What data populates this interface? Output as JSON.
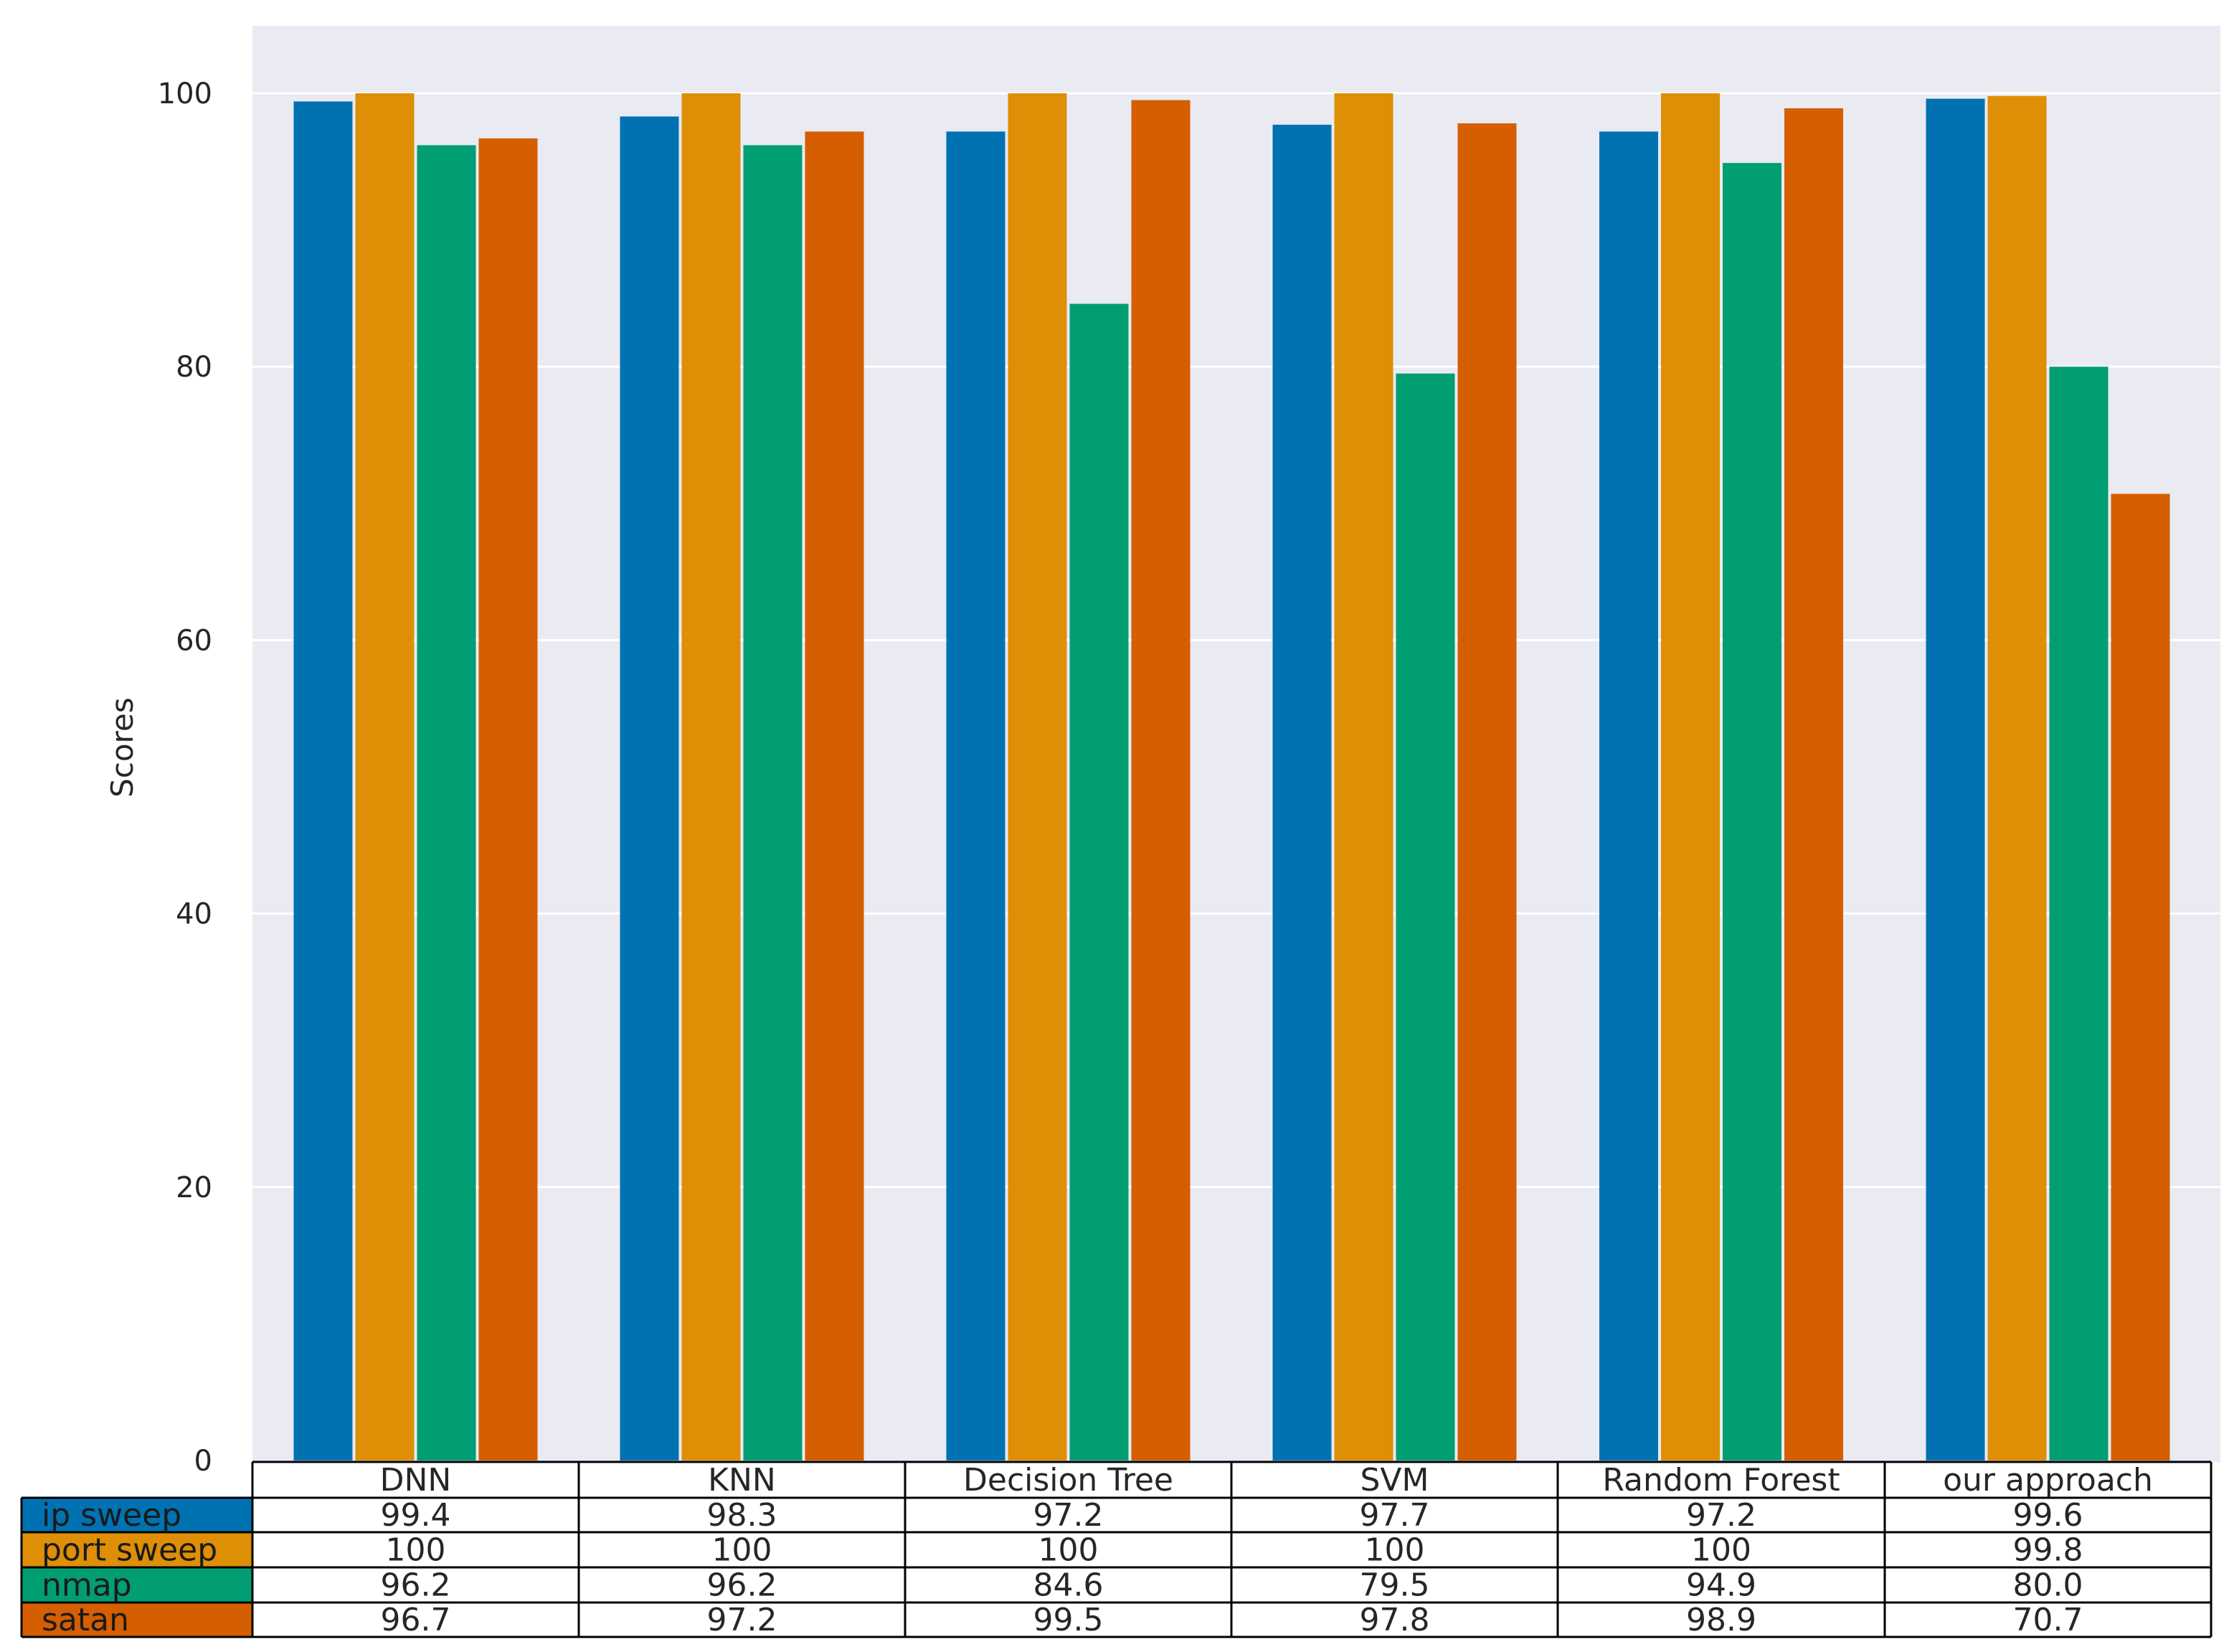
{
  "chart_data": {
    "type": "bar",
    "title": "",
    "xlabel": "",
    "ylabel": "Scores",
    "ylim": [
      0,
      105
    ],
    "yticks": [
      0,
      20,
      40,
      60,
      80,
      100
    ],
    "grid": true,
    "categories": [
      "DNN",
      "KNN",
      "Decision Tree",
      "SVM",
      "Random Forest",
      "our approach"
    ],
    "series": [
      {
        "name": "ip sweep",
        "color": "#0072b2",
        "values": [
          99.4,
          98.3,
          97.2,
          97.7,
          97.2,
          99.6
        ]
      },
      {
        "name": "port sweep",
        "color": "#de8f05",
        "values": [
          100,
          100,
          100,
          100,
          100,
          99.8
        ]
      },
      {
        "name": "nmap",
        "color": "#029e73",
        "values": [
          96.2,
          96.2,
          84.6,
          79.5,
          94.9,
          80.0
        ]
      },
      {
        "name": "satan",
        "color": "#d55e00",
        "values": [
          96.7,
          97.2,
          99.5,
          97.8,
          98.9,
          70.7
        ]
      }
    ],
    "table": {
      "rows": [
        [
          "99.4",
          "98.3",
          "97.2",
          "97.7",
          "97.2",
          "99.6"
        ],
        [
          "100",
          "100",
          "100",
          "100",
          "100",
          "99.8"
        ],
        [
          "96.2",
          "96.2",
          "84.6",
          "79.5",
          "94.9",
          "80.0"
        ],
        [
          "96.7",
          "97.2",
          "99.5",
          "97.8",
          "98.9",
          "70.7"
        ]
      ]
    },
    "colors": {
      "plot_background": "#eaeaf2",
      "grid": "#ffffff",
      "text": "#262626",
      "table_border": "#000000"
    }
  }
}
